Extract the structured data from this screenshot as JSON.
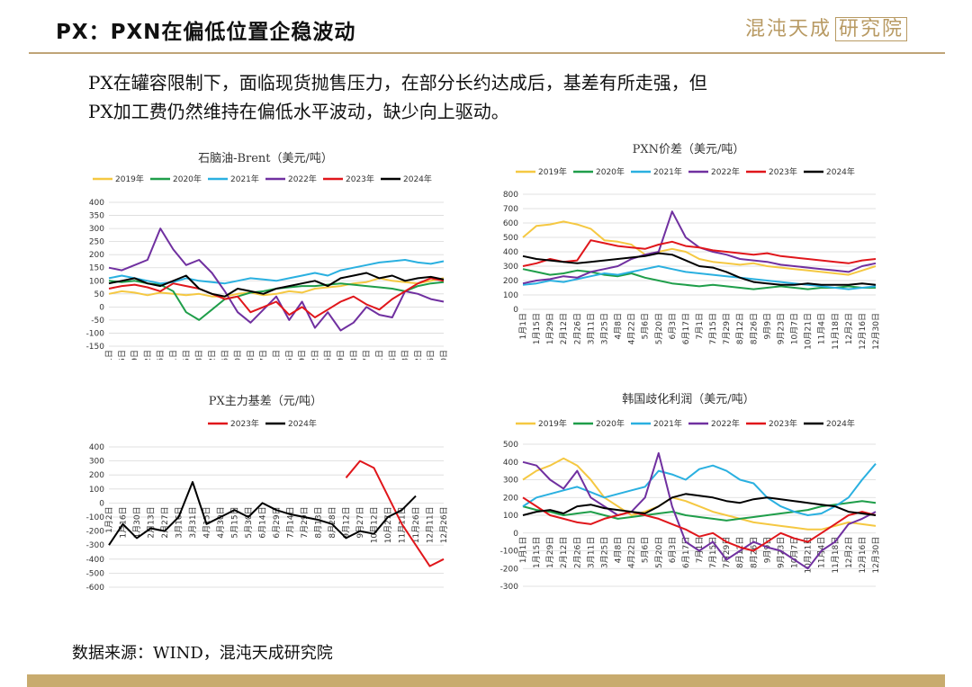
{
  "header": {
    "title": "PX：PXN在偏低位置企稳波动",
    "logo_text": "混沌天成",
    "logo_box": "研究院"
  },
  "description": {
    "line1": "PX在罐容限制下，面临现货抛售压力，在部分长约达成后，基差有所走强，但",
    "line2": "PX加工费仍然维持在偏低水平波动，缺少向上驱动。"
  },
  "footer": {
    "source": "数据来源：WIND，混沌天成研究院"
  },
  "colors": {
    "2019年": "#f5c842",
    "2020年": "#1f9e4a",
    "2021年": "#2ab0e0",
    "2022年": "#7030a0",
    "2023年": "#e0161b",
    "2024年": "#000000",
    "accent": "#c8ab6e"
  },
  "chart_data": [
    {
      "type": "line",
      "title": "石脑油-Brent（美元/吨）",
      "ylim": [
        -150,
        400
      ],
      "yticks": [
        -150,
        -100,
        -50,
        0,
        50,
        100,
        150,
        200,
        250,
        300,
        350,
        400
      ],
      "x": [
        "1月1日",
        "1月15日",
        "1月29日",
        "2月12日",
        "2月26日",
        "3月11日",
        "3月25日",
        "4月8日",
        "4月22日",
        "5月6日",
        "5月20日",
        "6月3日",
        "6月17日",
        "7月1日",
        "7月15日",
        "7月29日",
        "8月12日",
        "8月26日",
        "9月9日",
        "9月23日",
        "10月7日",
        "10月21日",
        "11月4日",
        "11月18日",
        "12月2日",
        "12月16日",
        "12月30日"
      ],
      "series": [
        {
          "name": "2019年",
          "values": [
            50,
            60,
            55,
            45,
            55,
            50,
            45,
            50,
            40,
            40,
            50,
            55,
            45,
            50,
            60,
            55,
            70,
            75,
            80,
            90,
            95,
            110,
            100,
            95,
            90,
            100,
            110
          ]
        },
        {
          "name": "2020年",
          "values": [
            100,
            95,
            100,
            90,
            85,
            60,
            -20,
            -50,
            -10,
            30,
            40,
            55,
            60,
            70,
            75,
            80,
            80,
            85,
            90,
            85,
            80,
            75,
            70,
            60,
            80,
            90,
            95
          ]
        },
        {
          "name": "2021年",
          "values": [
            110,
            120,
            110,
            100,
            90,
            95,
            110,
            100,
            95,
            90,
            100,
            110,
            105,
            100,
            110,
            120,
            130,
            120,
            140,
            150,
            160,
            170,
            175,
            180,
            170,
            165,
            175
          ]
        },
        {
          "name": "2022年",
          "values": [
            150,
            140,
            160,
            180,
            300,
            220,
            160,
            180,
            130,
            60,
            -20,
            -60,
            -10,
            40,
            -50,
            20,
            -80,
            -20,
            -90,
            -60,
            0,
            -30,
            -40,
            60,
            50,
            30,
            20
          ]
        },
        {
          "name": "2023年",
          "values": [
            70,
            80,
            85,
            75,
            60,
            90,
            80,
            70,
            50,
            30,
            40,
            -20,
            0,
            20,
            -30,
            0,
            -40,
            -10,
            20,
            40,
            10,
            -10,
            30,
            60,
            90,
            110,
            100
          ]
        },
        {
          "name": "2024年",
          "values": [
            90,
            100,
            110,
            90,
            80,
            100,
            120,
            70,
            50,
            40,
            70,
            60,
            50,
            70,
            80,
            90,
            100,
            80,
            110,
            120,
            130,
            110,
            120,
            100,
            110,
            115,
            105
          ]
        }
      ]
    },
    {
      "type": "line",
      "title": "PXN价差（美元/吨）",
      "ylim": [
        0,
        800
      ],
      "yticks": [
        0,
        100,
        200,
        300,
        400,
        500,
        600,
        700,
        800
      ],
      "x": [
        "1月1日",
        "1月15日",
        "1月29日",
        "2月12日",
        "2月26日",
        "3月11日",
        "3月25日",
        "4月8日",
        "4月22日",
        "5月6日",
        "5月20日",
        "6月3日",
        "6月17日",
        "7月1日",
        "7月15日",
        "7月29日",
        "8月12日",
        "8月26日",
        "9月9日",
        "9月23日",
        "10月7日",
        "10月21日",
        "11月4日",
        "11月18日",
        "12月2日",
        "12月16日",
        "12月30日"
      ],
      "series": [
        {
          "name": "2019年",
          "values": [
            500,
            580,
            590,
            610,
            590,
            560,
            480,
            470,
            450,
            380,
            400,
            420,
            400,
            350,
            330,
            320,
            310,
            320,
            300,
            290,
            280,
            270,
            260,
            250,
            240,
            270,
            300
          ]
        },
        {
          "name": "2020年",
          "values": [
            280,
            260,
            240,
            250,
            270,
            260,
            240,
            230,
            250,
            220,
            200,
            180,
            170,
            160,
            170,
            160,
            150,
            140,
            150,
            160,
            150,
            140,
            150,
            150,
            160,
            150,
            150
          ]
        },
        {
          "name": "2021年",
          "values": [
            170,
            180,
            200,
            190,
            210,
            230,
            250,
            240,
            260,
            280,
            300,
            280,
            260,
            250,
            240,
            230,
            220,
            210,
            200,
            190,
            180,
            170,
            160,
            150,
            140,
            150,
            160
          ]
        },
        {
          "name": "2022年",
          "values": [
            180,
            200,
            210,
            230,
            220,
            260,
            280,
            300,
            350,
            380,
            400,
            680,
            500,
            430,
            400,
            380,
            350,
            340,
            330,
            310,
            300,
            290,
            280,
            270,
            260,
            300,
            320
          ]
        },
        {
          "name": "2023年",
          "values": [
            300,
            320,
            350,
            330,
            340,
            480,
            460,
            440,
            430,
            420,
            450,
            470,
            440,
            430,
            410,
            400,
            390,
            380,
            390,
            370,
            360,
            350,
            340,
            330,
            320,
            340,
            350
          ]
        },
        {
          "name": "2024年",
          "values": [
            370,
            350,
            340,
            330,
            320,
            330,
            340,
            350,
            360,
            370,
            390,
            380,
            340,
            300,
            290,
            260,
            220,
            190,
            180,
            170,
            170,
            180,
            170,
            170,
            170,
            180,
            170
          ]
        }
      ]
    },
    {
      "type": "line",
      "title": "PX主力基差（元/吨）",
      "ylim": [
        -600,
        400
      ],
      "yticks": [
        -600,
        -500,
        -400,
        -300,
        -200,
        -100,
        0,
        100,
        200,
        300,
        400
      ],
      "x": [
        "1月2日",
        "1月16日",
        "1月30日",
        "2月13日",
        "2月27日",
        "3月16日",
        "3月31日",
        "4月15日",
        "4月30日",
        "5月15日",
        "5月30日",
        "6月14日",
        "6月29日",
        "7月14日",
        "7月29日",
        "8月13日",
        "8月28日",
        "9月12日",
        "9月27日",
        "10月12日",
        "10月27日",
        "11月11日",
        "11月26日",
        "12月11日",
        "12月26日"
      ],
      "series": [
        {
          "name": "2023年",
          "values": [
            null,
            null,
            null,
            null,
            null,
            null,
            null,
            null,
            null,
            null,
            null,
            null,
            null,
            null,
            null,
            null,
            null,
            180,
            300,
            250,
            50,
            -150,
            -300,
            -450,
            -400
          ]
        },
        {
          "name": "2024年",
          "values": [
            -300,
            -150,
            -250,
            -180,
            -200,
            -100,
            150,
            -150,
            -100,
            -50,
            -100,
            0,
            -50,
            -80,
            -100,
            -120,
            -150,
            -250,
            -200,
            -220,
            -100,
            -50,
            50,
            null,
            null
          ]
        }
      ]
    },
    {
      "type": "line",
      "title": "韩国歧化利润（美元/吨）",
      "ylim": [
        -300,
        500
      ],
      "yticks": [
        -300,
        -200,
        -100,
        0,
        100,
        200,
        300,
        400,
        500
      ],
      "x": [
        "1月1日",
        "1月15日",
        "1月29日",
        "2月12日",
        "2月26日",
        "3月11日",
        "3月25日",
        "4月8日",
        "4月22日",
        "5月6日",
        "5月20日",
        "6月3日",
        "6月17日",
        "7月1日",
        "7月15日",
        "7月29日",
        "8月12日",
        "8月26日",
        "9月9日",
        "9月23日",
        "10月7日",
        "10月21日",
        "11月4日",
        "11月18日",
        "12月2日",
        "12月16日",
        "12月30日"
      ],
      "series": [
        {
          "name": "2019年",
          "values": [
            300,
            350,
            380,
            420,
            380,
            300,
            200,
            150,
            100,
            120,
            150,
            200,
            180,
            150,
            120,
            100,
            80,
            60,
            50,
            40,
            30,
            20,
            20,
            40,
            60,
            50,
            40
          ]
        },
        {
          "name": "2020年",
          "values": [
            150,
            130,
            120,
            100,
            110,
            120,
            100,
            80,
            90,
            100,
            110,
            120,
            100,
            90,
            80,
            70,
            80,
            90,
            100,
            110,
            120,
            130,
            150,
            160,
            170,
            180,
            170
          ]
        },
        {
          "name": "2021年",
          "values": [
            150,
            200,
            220,
            240,
            260,
            230,
            200,
            220,
            240,
            260,
            350,
            330,
            300,
            360,
            380,
            350,
            300,
            280,
            200,
            150,
            120,
            100,
            110,
            150,
            200,
            300,
            390
          ]
        },
        {
          "name": "2022年",
          "values": [
            400,
            380,
            300,
            250,
            350,
            200,
            150,
            100,
            120,
            200,
            450,
            150,
            -50,
            -100,
            -50,
            -150,
            -100,
            -50,
            -80,
            -100,
            -150,
            -200,
            -100,
            -50,
            50,
            80,
            120
          ]
        },
        {
          "name": "2023年",
          "values": [
            200,
            150,
            100,
            80,
            60,
            50,
            80,
            100,
            120,
            100,
            80,
            50,
            20,
            -20,
            0,
            -50,
            -80,
            -100,
            -50,
            0,
            -30,
            -50,
            0,
            50,
            100,
            120,
            100
          ]
        },
        {
          "name": "2024年",
          "values": [
            100,
            120,
            130,
            110,
            150,
            160,
            140,
            130,
            120,
            110,
            150,
            200,
            220,
            210,
            200,
            180,
            170,
            190,
            200,
            190,
            180,
            170,
            160,
            150,
            120,
            110,
            100
          ]
        }
      ]
    }
  ]
}
